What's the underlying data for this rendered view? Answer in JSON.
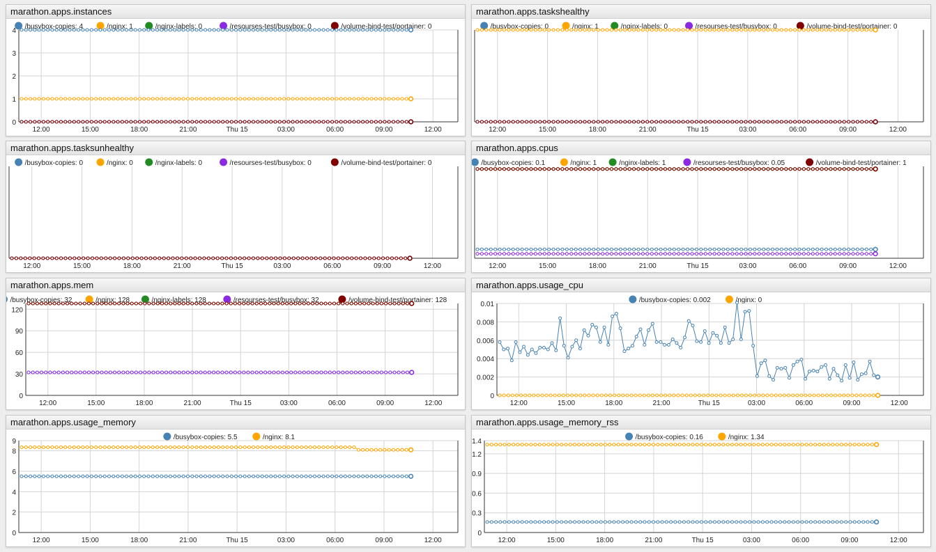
{
  "colors": {
    "blue": "#4682b4",
    "orange": "#ffa500",
    "green": "#228b22",
    "purple": "#8a2be2",
    "maroon": "#800000"
  },
  "x_ticks": [
    "12:00",
    "15:00",
    "18:00",
    "21:00",
    "Thu 15",
    "03:00",
    "06:00",
    "09:00",
    "12:00"
  ],
  "chart_data": [
    {
      "type": "line",
      "title": "marathon.apps.instances",
      "ylim": [
        0,
        4
      ],
      "yticks": [
        0,
        1,
        2,
        3,
        4
      ],
      "legend": [
        {
          "name": "/busybox-copies",
          "value": "4",
          "color": "#4682b4"
        },
        {
          "name": "/nginx",
          "value": "1",
          "color": "#ffa500"
        },
        {
          "name": "/nginx-labels",
          "value": "0",
          "color": "#228b22"
        },
        {
          "name": "/resourses-test/busybox",
          "value": "0",
          "color": "#8a2be2"
        },
        {
          "name": "/volume-bind-test/portainer",
          "value": "0",
          "color": "#800000"
        }
      ],
      "series": [
        {
          "name": "/busybox-copies",
          "color": "#4682b4",
          "const": 4
        },
        {
          "name": "/nginx",
          "color": "#ffa500",
          "const": 1
        },
        {
          "name": "/nginx-labels",
          "color": "#228b22",
          "const": 0
        },
        {
          "name": "/resourses-test/busybox",
          "color": "#8a2be2",
          "const": 0
        },
        {
          "name": "/volume-bind-test/portainer",
          "color": "#800000",
          "const": 0
        }
      ]
    },
    {
      "type": "line",
      "title": "marathon.apps.taskshealthy",
      "ylim": [
        0,
        1
      ],
      "yticks": [],
      "legend": [
        {
          "name": "/busybox-copies",
          "value": "0",
          "color": "#4682b4"
        },
        {
          "name": "/nginx",
          "value": "1",
          "color": "#ffa500"
        },
        {
          "name": "/nginx-labels",
          "value": "0",
          "color": "#228b22"
        },
        {
          "name": "/resourses-test/busybox",
          "value": "0",
          "color": "#8a2be2"
        },
        {
          "name": "/volume-bind-test/portainer",
          "value": "0",
          "color": "#800000"
        }
      ],
      "series": [
        {
          "name": "/busybox-copies",
          "color": "#4682b4",
          "const": 0
        },
        {
          "name": "/nginx",
          "color": "#ffa500",
          "const": 1
        },
        {
          "name": "/nginx-labels",
          "color": "#228b22",
          "const": 0
        },
        {
          "name": "/resourses-test/busybox",
          "color": "#8a2be2",
          "const": 0
        },
        {
          "name": "/volume-bind-test/portainer",
          "color": "#800000",
          "const": 0
        }
      ]
    },
    {
      "type": "line",
      "title": "marathon.apps.tasksunhealthy",
      "ylim": [
        0,
        1
      ],
      "yticks": [],
      "legend": [
        {
          "name": "/busybox-copies",
          "value": "0",
          "color": "#4682b4"
        },
        {
          "name": "/nginx",
          "value": "0",
          "color": "#ffa500"
        },
        {
          "name": "/nginx-labels",
          "value": "0",
          "color": "#228b22"
        },
        {
          "name": "/resourses-test/busybox",
          "value": "0",
          "color": "#8a2be2"
        },
        {
          "name": "/volume-bind-test/portainer",
          "value": "0",
          "color": "#800000"
        }
      ],
      "series": [
        {
          "name": "/busybox-copies",
          "color": "#4682b4",
          "const": 0
        },
        {
          "name": "/nginx",
          "color": "#ffa500",
          "const": 0
        },
        {
          "name": "/nginx-labels",
          "color": "#228b22",
          "const": 0
        },
        {
          "name": "/resourses-test/busybox",
          "color": "#8a2be2",
          "const": 0
        },
        {
          "name": "/volume-bind-test/portainer",
          "color": "#800000",
          "const": 0
        }
      ]
    },
    {
      "type": "line",
      "title": "marathon.apps.cpus",
      "ylim": [
        0,
        1.03
      ],
      "yticks": [],
      "legend": [
        {
          "name": "/busybox-copies",
          "value": "0.1",
          "color": "#4682b4"
        },
        {
          "name": "/nginx",
          "value": "1",
          "color": "#ffa500"
        },
        {
          "name": "/nginx-labels",
          "value": "1",
          "color": "#228b22"
        },
        {
          "name": "/resourses-test/busybox",
          "value": "0.05",
          "color": "#8a2be2"
        },
        {
          "name": "/volume-bind-test/portainer",
          "value": "1",
          "color": "#800000"
        }
      ],
      "series": [
        {
          "name": "/busybox-copies",
          "color": "#4682b4",
          "const": 0.1
        },
        {
          "name": "/nginx",
          "color": "#ffa500",
          "const": 1
        },
        {
          "name": "/nginx-labels",
          "color": "#228b22",
          "const": 1
        },
        {
          "name": "/resourses-test/busybox",
          "color": "#8a2be2",
          "const": 0.05
        },
        {
          "name": "/volume-bind-test/portainer",
          "color": "#800000",
          "const": 1
        }
      ]
    },
    {
      "type": "line",
      "title": "marathon.apps.mem",
      "ylim": [
        0,
        128
      ],
      "yticks": [
        0,
        30,
        60,
        90,
        120
      ],
      "legend": [
        {
          "name": "/busybox-copies",
          "value": "32",
          "color": "#4682b4"
        },
        {
          "name": "/nginx",
          "value": "128",
          "color": "#ffa500"
        },
        {
          "name": "/nginx-labels",
          "value": "128",
          "color": "#228b22"
        },
        {
          "name": "/resourses-test/busybox",
          "value": "32",
          "color": "#8a2be2"
        },
        {
          "name": "/volume-bind-test/portainer",
          "value": "128",
          "color": "#800000"
        }
      ],
      "series": [
        {
          "name": "/busybox-copies",
          "color": "#4682b4",
          "const": 32
        },
        {
          "name": "/nginx",
          "color": "#ffa500",
          "const": 128
        },
        {
          "name": "/nginx-labels",
          "color": "#228b22",
          "const": 128
        },
        {
          "name": "/resourses-test/busybox",
          "color": "#8a2be2",
          "const": 32
        },
        {
          "name": "/volume-bind-test/portainer",
          "color": "#800000",
          "const": 128
        }
      ]
    },
    {
      "type": "line",
      "title": "marathon.apps.usage_cpu",
      "ylim": [
        0,
        0.01
      ],
      "yticks": [
        0,
        0.002,
        0.004,
        0.006,
        0.008,
        0.01
      ],
      "legend": [
        {
          "name": "/busybox-copies",
          "value": "0.002",
          "color": "#4682b4"
        },
        {
          "name": "/nginx",
          "value": "0",
          "color": "#ffa500"
        }
      ],
      "series": [
        {
          "name": "/busybox-copies",
          "color": "#4682b4",
          "small": true,
          "values": [
            0.0058,
            0.005,
            0.0051,
            0.0038,
            0.0058,
            0.0047,
            0.0053,
            0.0044,
            0.005,
            0.0046,
            0.0052,
            0.0052,
            0.005,
            0.0057,
            0.0049,
            0.0084,
            0.0054,
            0.0041,
            0.0053,
            0.006,
            0.0051,
            0.0071,
            0.0065,
            0.0077,
            0.0074,
            0.0058,
            0.0074,
            0.0055,
            0.0086,
            0.0089,
            0.0073,
            0.0048,
            0.0051,
            0.0054,
            0.0064,
            0.0072,
            0.0055,
            0.0071,
            0.0078,
            0.0058,
            0.0058,
            0.0055,
            0.0055,
            0.0061,
            0.0057,
            0.0052,
            0.0063,
            0.0081,
            0.0076,
            0.0059,
            0.0058,
            0.007,
            0.0057,
            0.0068,
            0.0065,
            0.0057,
            0.0074,
            0.0057,
            0.0061,
            0.0101,
            0.0061,
            0.0091,
            0.0092,
            0.0054,
            0.0021,
            0.0035,
            0.0038,
            0.0021,
            0.0017,
            0.003,
            0.0029,
            0.003,
            0.0019,
            0.0033,
            0.0037,
            0.0039,
            0.0018,
            0.0026,
            0.0027,
            0.0026,
            0.0031,
            0.0033,
            0.0018,
            0.0029,
            0.0022,
            0.0016,
            0.0033,
            0.0019,
            0.0036,
            0.0017,
            0.0023,
            0.0024,
            0.0037,
            0.0022,
            0.002
          ]
        },
        {
          "name": "/nginx",
          "color": "#ffa500",
          "const": 0
        }
      ]
    },
    {
      "type": "line",
      "title": "marathon.apps.usage_memory",
      "ylim": [
        0,
        9
      ],
      "yticks": [
        0,
        2,
        4,
        6,
        8,
        9
      ],
      "legend": [
        {
          "name": "/busybox-copies",
          "value": "5.5",
          "color": "#4682b4"
        },
        {
          "name": "/nginx",
          "value": "8.1",
          "color": "#ffa500"
        }
      ],
      "series": [
        {
          "name": "/busybox-copies",
          "color": "#4682b4",
          "const": 5.5
        },
        {
          "name": "/nginx",
          "color": "#ffa500",
          "steps": [
            [
              0,
              8.35
            ],
            [
              0.86,
              8.35
            ],
            [
              0.86,
              8.1
            ],
            [
              1,
              8.1
            ]
          ]
        }
      ]
    },
    {
      "type": "line",
      "title": "marathon.apps.usage_memory_rss",
      "ylim": [
        0,
        1.4
      ],
      "yticks": [
        0,
        0.3,
        0.6,
        0.9,
        1.2,
        1.4
      ],
      "legend": [
        {
          "name": "/busybox-copies",
          "value": "0.16",
          "color": "#4682b4"
        },
        {
          "name": "/nginx",
          "value": "1.34",
          "color": "#ffa500"
        }
      ],
      "series": [
        {
          "name": "/busybox-copies",
          "color": "#4682b4",
          "const": 0.16
        },
        {
          "name": "/nginx",
          "color": "#ffa500",
          "const": 1.34
        }
      ]
    }
  ]
}
